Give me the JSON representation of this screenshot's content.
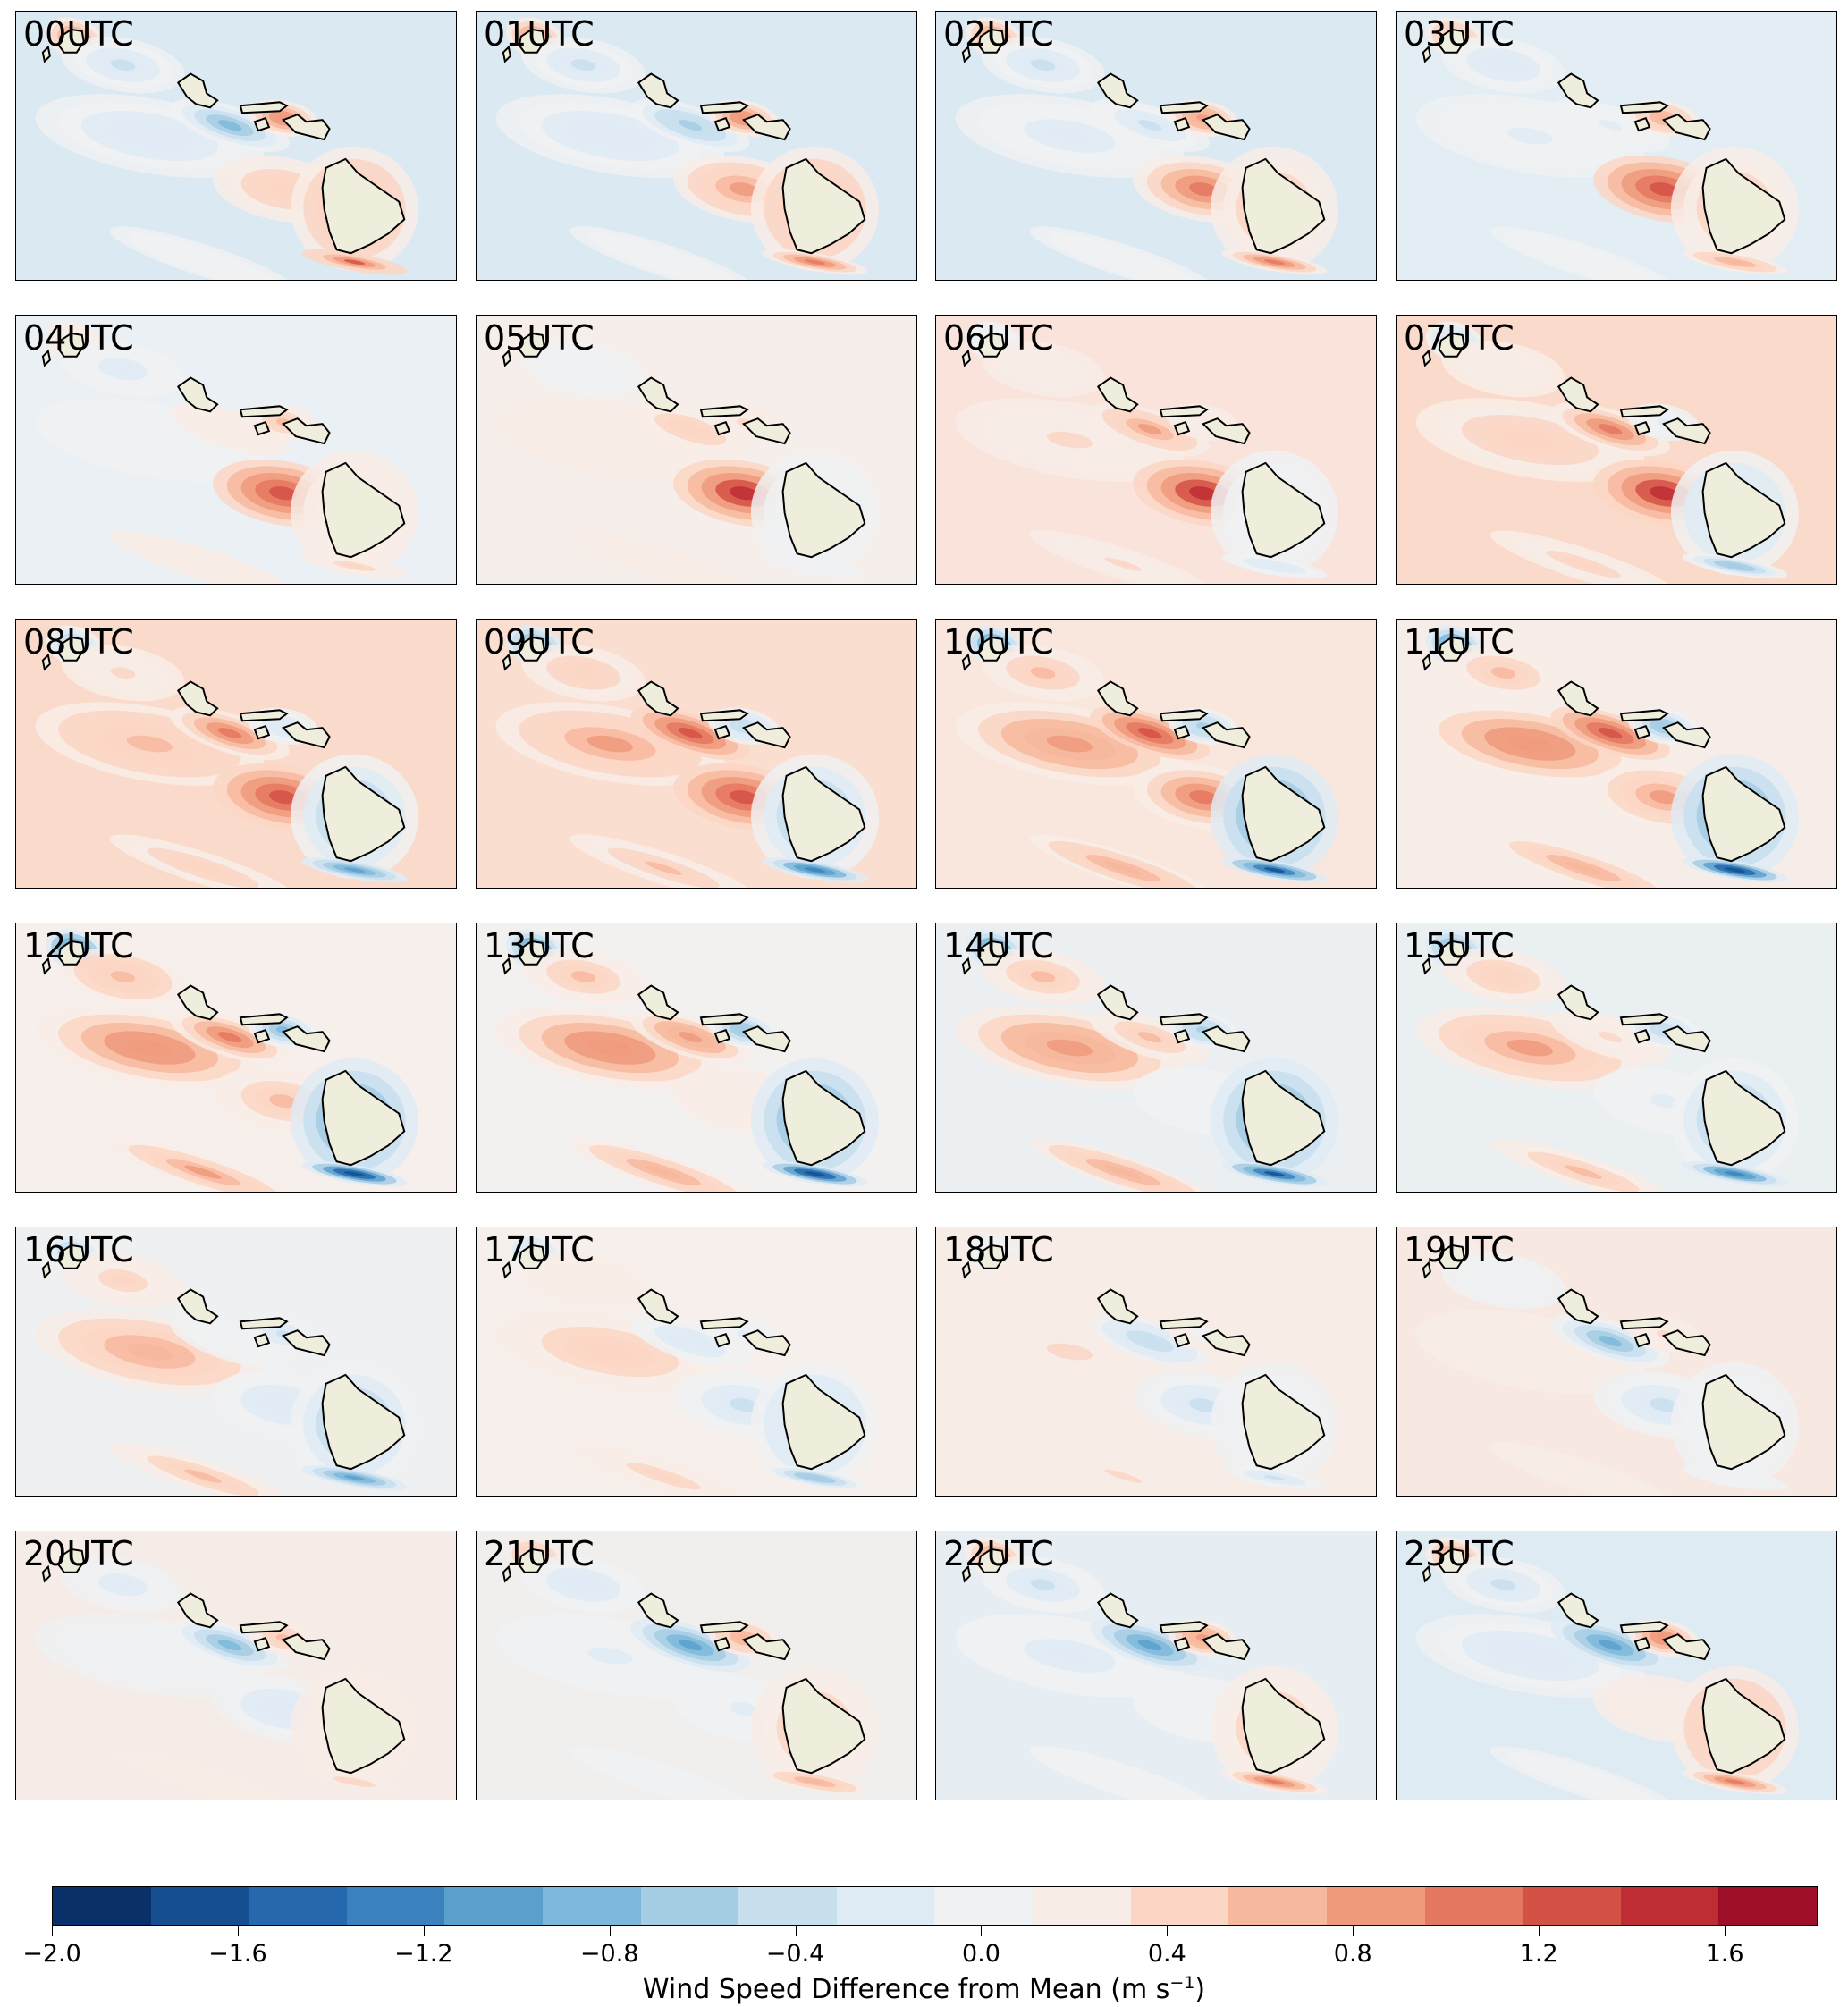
{
  "panels": [
    {
      "label": "00UTC",
      "bg": "#dbe9f3",
      "phase": 0
    },
    {
      "label": "01UTC",
      "bg": "#dbe9f3",
      "phase": 1
    },
    {
      "label": "02UTC",
      "bg": "#dbe9f3",
      "phase": 2
    },
    {
      "label": "03UTC",
      "bg": "#e2edf4",
      "phase": 3
    },
    {
      "label": "04UTC",
      "bg": "#eaf0f4",
      "phase": 4
    },
    {
      "label": "05UTC",
      "bg": "#f6eeea",
      "phase": 5
    },
    {
      "label": "06UTC",
      "bg": "#f9e3da",
      "phase": 6
    },
    {
      "label": "07UTC",
      "bg": "#fadacb",
      "phase": 7
    },
    {
      "label": "08UTC",
      "bg": "#fadacb",
      "phase": 8
    },
    {
      "label": "09UTC",
      "bg": "#fadfd1",
      "phase": 9
    },
    {
      "label": "10UTC",
      "bg": "#f9e6dd",
      "phase": 10
    },
    {
      "label": "11UTC",
      "bg": "#f6ede8",
      "phase": 11
    },
    {
      "label": "12UTC",
      "bg": "#f6efeb",
      "phase": 12
    },
    {
      "label": "13UTC",
      "bg": "#f3f1f0",
      "phase": 13
    },
    {
      "label": "14UTC",
      "bg": "#eceff2",
      "phase": 14
    },
    {
      "label": "15UTC",
      "bg": "#eaeff2",
      "phase": 15
    },
    {
      "label": "16UTC",
      "bg": "#eff0f1",
      "phase": 16
    },
    {
      "label": "17UTC",
      "bg": "#f6efec",
      "phase": 17
    },
    {
      "label": "18UTC",
      "bg": "#f7ece6",
      "phase": 18
    },
    {
      "label": "19UTC",
      "bg": "#f7e9e2",
      "phase": 19
    },
    {
      "label": "20UTC",
      "bg": "#f5ece8",
      "phase": 20
    },
    {
      "label": "21UTC",
      "bg": "#f1efee",
      "phase": 21
    },
    {
      "label": "22UTC",
      "bg": "#e6eef3",
      "phase": 22
    },
    {
      "label": "23UTC",
      "bg": "#dfebf3",
      "phase": 23
    }
  ],
  "colorbar": {
    "min": -2.0,
    "max": 1.8,
    "step": 0.2,
    "colors": [
      "#0a3069",
      "#154f8f",
      "#2568ad",
      "#3a82bd",
      "#5aa0cc",
      "#7db8da",
      "#a5cde4",
      "#c8dfee",
      "#dfebf4",
      "#f0f1f2",
      "#f8ece6",
      "#fbd6c4",
      "#f7b99e",
      "#f09a7c",
      "#e4775f",
      "#d45146",
      "#bf2d34",
      "#9e0f27"
    ],
    "ticks": [
      "−2.0",
      "−1.6",
      "−1.2",
      "−0.8",
      "−0.4",
      "0.0",
      "0.4",
      "0.8",
      "1.2",
      "1.6"
    ],
    "tick_values": [
      -2.0,
      -1.6,
      -1.2,
      -0.8,
      -0.4,
      0.0,
      0.4,
      0.8,
      1.2,
      1.6
    ],
    "label_main": "Wind Speed Difference from Mean (m s",
    "label_sup": "−1",
    "label_end": ")"
  },
  "land_color": "#efeddc"
}
